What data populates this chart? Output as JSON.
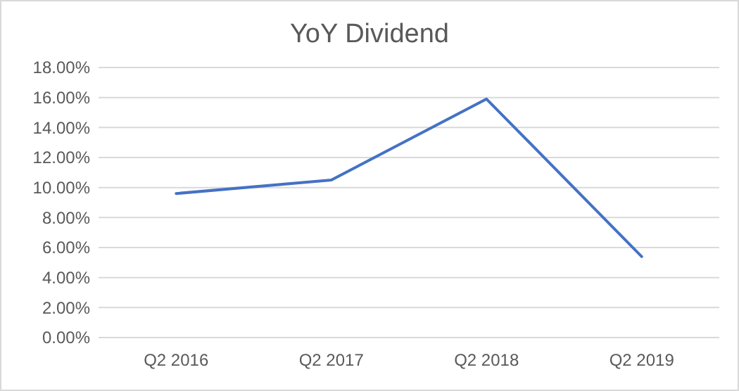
{
  "chart_data": {
    "type": "line",
    "title": "YoY Dividend",
    "categories": [
      "Q2 2016",
      "Q2 2017",
      "Q2 2018",
      "Q2 2019"
    ],
    "series": [
      {
        "color": "#4472c4",
        "values": [
          9.6,
          10.5,
          15.9,
          5.4
        ]
      }
    ],
    "ylim": [
      0,
      18
    ],
    "yticks": [
      {
        "value": 0,
        "label": "0.00%"
      },
      {
        "value": 2,
        "label": "2.00%"
      },
      {
        "value": 4,
        "label": "4.00%"
      },
      {
        "value": 6,
        "label": "6.00%"
      },
      {
        "value": 8,
        "label": "8.00%"
      },
      {
        "value": 10,
        "label": "10.00%"
      },
      {
        "value": 12,
        "label": "12.00%"
      },
      {
        "value": 14,
        "label": "14.00%"
      },
      {
        "value": 16,
        "label": "16.00%"
      },
      {
        "value": 18,
        "label": "18.00%"
      }
    ],
    "grid": "y",
    "marker": "none",
    "line_style": "solid"
  }
}
